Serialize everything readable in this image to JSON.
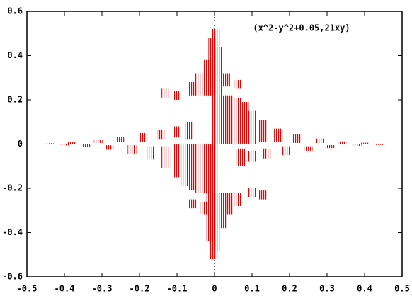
{
  "chart_data": {
    "type": "impulse",
    "annotation": "(x^2-y^2+0.05,21xy)",
    "color": "#ee0000",
    "xlim": [
      -0.5,
      0.5
    ],
    "xticks": [
      -0.5,
      -0.4,
      -0.3,
      -0.2,
      -0.1,
      0,
      0.1,
      0.2,
      0.3,
      0.4,
      0.5
    ],
    "ylim": [
      -0.6,
      0.6
    ],
    "yticks": [
      -0.6,
      -0.4,
      -0.2,
      0,
      0.2,
      0.4,
      0.6
    ],
    "segments": {
      "x": [
        0.003,
        0.01,
        0.02,
        0.04,
        0.06,
        0.08,
        0.1,
        0.13,
        0.17,
        0.22,
        0.28,
        0.34,
        0.4,
        0.03,
        0.06,
        -0.005,
        -0.02,
        -0.04,
        -0.06,
        -0.1,
        -0.13,
        -0.07,
        -0.1,
        -0.14,
        -0.19,
        -0.25,
        -0.31,
        -0.38,
        -0.44,
        -0.003,
        -0.01,
        -0.02,
        -0.04,
        -0.06,
        -0.08,
        -0.1,
        -0.13,
        -0.17,
        -0.22,
        -0.28,
        -0.34,
        -0.4,
        -0.03,
        -0.06,
        0.005,
        0.02,
        0.04,
        0.06,
        0.1,
        0.13,
        0.07,
        0.1,
        0.14,
        0.19,
        0.25,
        0.31,
        0.38,
        0.44
      ],
      "low": [
        0,
        0,
        0,
        0,
        0,
        0,
        0,
        0.01,
        0.01,
        0.005,
        0.005,
        0,
        0,
        0.26,
        0.25,
        0.22,
        0.22,
        0.22,
        0.22,
        0.2,
        0.21,
        0.02,
        0.03,
        0.02,
        0.01,
        0.01,
        0.005,
        0,
        0,
        -0.52,
        -0.44,
        -0.22,
        -0.22,
        -0.21,
        -0.19,
        -0.15,
        -0.11,
        -0.07,
        -0.045,
        -0.025,
        -0.012,
        -0.006,
        -0.32,
        -0.29,
        -0.48,
        -0.38,
        -0.32,
        -0.28,
        -0.24,
        -0.25,
        -0.1,
        -0.08,
        -0.065,
        -0.05,
        -0.03,
        -0.018,
        -0.008,
        -0.004
      ],
      "high": [
        0.52,
        0.44,
        0.22,
        0.22,
        0.21,
        0.19,
        0.15,
        0.11,
        0.07,
        0.045,
        0.025,
        0.012,
        0.006,
        0.32,
        0.29,
        0.48,
        0.38,
        0.32,
        0.28,
        0.24,
        0.25,
        0.1,
        0.08,
        0.065,
        0.05,
        0.03,
        0.018,
        0.008,
        0.004,
        0,
        0,
        0,
        0,
        0,
        0,
        0,
        -0.01,
        -0.01,
        -0.005,
        -0.005,
        0,
        0,
        -0.26,
        -0.25,
        -0.22,
        -0.22,
        -0.22,
        -0.22,
        -0.2,
        -0.21,
        -0.02,
        -0.03,
        -0.02,
        -0.01,
        -0.01,
        -0.005,
        0,
        0
      ]
    }
  }
}
